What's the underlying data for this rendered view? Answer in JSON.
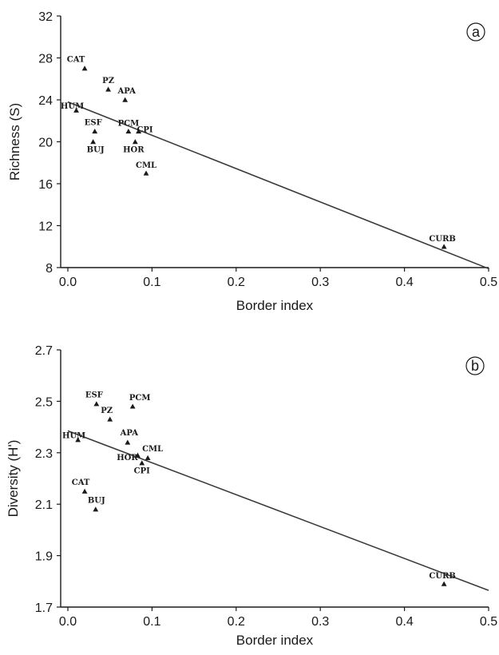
{
  "chart_data": [
    {
      "type": "scatter",
      "panel": "a",
      "xlabel": "Border index",
      "ylabel": "Richness (S)",
      "xlim": [
        0,
        0.5
      ],
      "ylim": [
        8,
        32
      ],
      "xticks": [
        0.0,
        0.1,
        0.2,
        0.3,
        0.4,
        0.5
      ],
      "xtick_labels": [
        "0.0",
        "0.1",
        "0.2",
        "0.3",
        "0.4",
        "0.5"
      ],
      "yticks": [
        8,
        12,
        16,
        20,
        24,
        28,
        32
      ],
      "ytick_labels": [
        "8",
        "12",
        "16",
        "20",
        "24",
        "28",
        "32"
      ],
      "grid": false,
      "points": [
        {
          "label": "CAT",
          "x": 0.02,
          "y": 27
        },
        {
          "label": "PZ",
          "x": 0.048,
          "y": 25
        },
        {
          "label": "APA",
          "x": 0.068,
          "y": 24
        },
        {
          "label": "HUM",
          "x": 0.01,
          "y": 23
        },
        {
          "label": "ESF",
          "x": 0.032,
          "y": 21
        },
        {
          "label": "PCM",
          "x": 0.072,
          "y": 21
        },
        {
          "label": "CPI",
          "x": 0.084,
          "y": 21
        },
        {
          "label": "BUJ",
          "x": 0.03,
          "y": 20
        },
        {
          "label": "HOR",
          "x": 0.08,
          "y": 20
        },
        {
          "label": "CML",
          "x": 0.093,
          "y": 17
        },
        {
          "label": "CURB",
          "x": 0.447,
          "y": 10
        }
      ],
      "trendline": {
        "x": [
          0.0,
          0.5
        ],
        "y": [
          23.8,
          7.9
        ]
      }
    },
    {
      "type": "scatter",
      "panel": "b",
      "xlabel": "Border index",
      "ylabel": "Diversity (H')",
      "xlim": [
        0,
        0.5
      ],
      "ylim": [
        1.7,
        2.7
      ],
      "xticks": [
        0.0,
        0.1,
        0.2,
        0.3,
        0.4,
        0.5
      ],
      "xtick_labels": [
        "0.0",
        "0.1",
        "0.2",
        "0.3",
        "0.4",
        "0.5"
      ],
      "yticks": [
        1.7,
        1.9,
        2.1,
        2.3,
        2.5,
        2.7
      ],
      "ytick_labels": [
        "1.7",
        "1.9",
        "2.1",
        "2.3",
        "2.5",
        "2.7"
      ],
      "grid": false,
      "points": [
        {
          "label": "ESF",
          "x": 0.034,
          "y": 2.49
        },
        {
          "label": "PCM",
          "x": 0.077,
          "y": 2.48
        },
        {
          "label": "PZ",
          "x": 0.05,
          "y": 2.43
        },
        {
          "label": "HUM",
          "x": 0.012,
          "y": 2.35
        },
        {
          "label": "APA",
          "x": 0.071,
          "y": 2.34
        },
        {
          "label": "HOR",
          "x": 0.083,
          "y": 2.29
        },
        {
          "label": "CML",
          "x": 0.095,
          "y": 2.28
        },
        {
          "label": "CPI",
          "x": 0.088,
          "y": 2.26
        },
        {
          "label": "CAT",
          "x": 0.02,
          "y": 2.15
        },
        {
          "label": "BUJ",
          "x": 0.033,
          "y": 2.08
        },
        {
          "label": "CURB",
          "x": 0.447,
          "y": 1.79
        }
      ],
      "trendline": {
        "x": [
          0.0,
          0.5
        ],
        "y": [
          2.385,
          1.765
        ]
      }
    }
  ]
}
